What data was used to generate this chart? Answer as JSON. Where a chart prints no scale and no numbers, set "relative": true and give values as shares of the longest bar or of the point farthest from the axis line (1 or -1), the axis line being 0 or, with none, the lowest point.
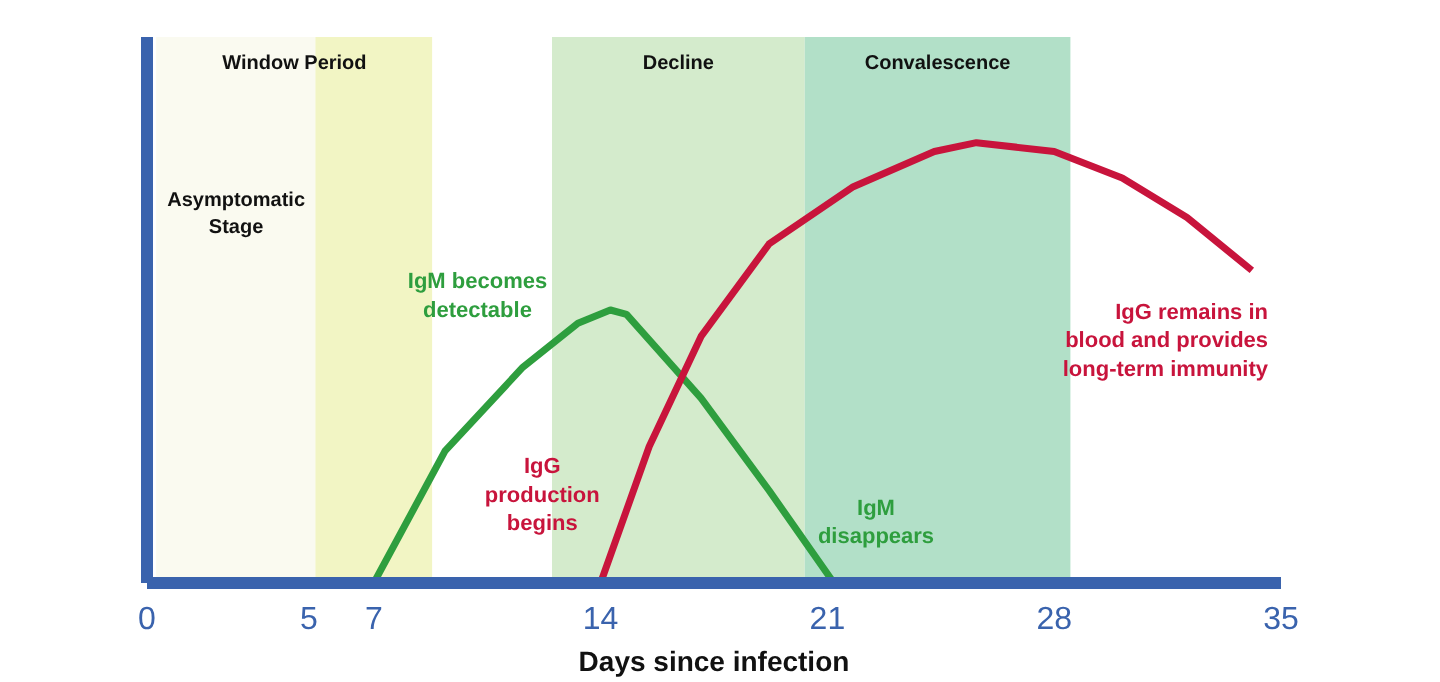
{
  "chart_data": {
    "type": "line",
    "relative": true,
    "xlabel": "Days since infection",
    "xlim": [
      0,
      35
    ],
    "xticks": [
      0,
      5,
      7,
      14,
      21,
      28,
      35
    ],
    "grid": false,
    "line_style": "solid",
    "marker": "none",
    "series": [
      {
        "color": "#2e9e3e",
        "x": [
          7,
          9.2,
          11.6,
          13.3,
          14.3,
          14.8,
          17.1,
          19.2,
          21.2
        ],
        "values": [
          0,
          0.3,
          0.49,
          0.59,
          0.62,
          0.61,
          0.42,
          0.21,
          0
        ]
      },
      {
        "color": "#c8143c",
        "x": [
          14,
          15.5,
          17.1,
          19.2,
          21.8,
          24.3,
          25.6,
          28,
          30.1,
          32.1,
          34.1
        ],
        "values": [
          0,
          0.31,
          0.56,
          0.77,
          0.9,
          0.98,
          1,
          0.98,
          0.92,
          0.83,
          0.71
        ]
      }
    ],
    "bands": [
      {
        "axis": "x",
        "from": 0.3,
        "to": 8.8,
        "label": "Window Period",
        "color": "#f2f5c4"
      },
      {
        "axis": "x",
        "from": 0.3,
        "to": 5.2,
        "label": "Asymptomatic\nStage",
        "color": "#fafaf0"
      },
      {
        "axis": "x",
        "from": 12.5,
        "to": 20.3,
        "label": "Decline",
        "color": "#d4ebcc"
      },
      {
        "axis": "x",
        "from": 20.3,
        "to": 28.5,
        "label": "Convalescence",
        "color": "#b2e0c8"
      }
    ],
    "annotations": [
      {
        "text": "IgM becomes\ndetectable",
        "x": 11.6,
        "y": 0.49
      },
      {
        "text": "IgG\nproduction\nbegins",
        "x": 14,
        "y": 0
      },
      {
        "text": "IgM\ndisappears",
        "x": 21.2,
        "y": 0
      },
      {
        "text": "IgG remains in\nblood and provides\nlong-term immunity",
        "x": 34.1,
        "y": 0.71
      }
    ]
  }
}
